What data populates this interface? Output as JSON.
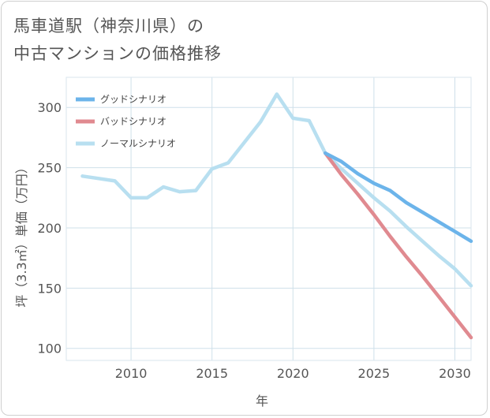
{
  "title_lines": [
    "馬車道駅（神奈川県）の",
    "中古マンションの価格推移"
  ],
  "chart_data": {
    "type": "line",
    "title": "馬車道駅（神奈川県）の中古マンションの価格推移",
    "xlabel": "年",
    "ylabel": "坪（3.3㎡）単価（万円）",
    "xlim": [
      2006,
      2031
    ],
    "ylim": [
      90,
      325
    ],
    "xticks": [
      2010,
      2015,
      2020,
      2025,
      2030
    ],
    "yticks": [
      100,
      150,
      200,
      250,
      300
    ],
    "grid": true,
    "legend_position": "top-left",
    "series": [
      {
        "name": "グッドシナリオ",
        "color": "#6cb4ea",
        "x": [
          2022,
          2023,
          2024,
          2025,
          2026,
          2027,
          2028,
          2029,
          2030,
          2031
        ],
        "values": [
          262,
          255,
          245,
          237,
          231,
          221,
          213,
          205,
          197,
          189
        ]
      },
      {
        "name": "バッドシナリオ",
        "color": "#e08a90",
        "x": [
          2022,
          2023,
          2024,
          2025,
          2026,
          2027,
          2028,
          2029,
          2030,
          2031
        ],
        "values": [
          262,
          244,
          228,
          211,
          193,
          176,
          160,
          143,
          126,
          109
        ]
      },
      {
        "name": "ノーマルシナリオ",
        "color": "#b8dff0",
        "x": [
          2007,
          2008,
          2009,
          2010,
          2011,
          2012,
          2013,
          2014,
          2015,
          2016,
          2017,
          2018,
          2019,
          2020,
          2021,
          2022,
          2023,
          2024,
          2025,
          2026,
          2027,
          2028,
          2029,
          2030,
          2031
        ],
        "values": [
          243,
          241,
          239,
          225,
          225,
          234,
          230,
          231,
          249,
          254,
          271,
          288,
          311,
          291,
          289,
          262,
          249,
          237,
          225,
          214,
          201,
          189,
          177,
          166,
          152
        ]
      }
    ]
  }
}
